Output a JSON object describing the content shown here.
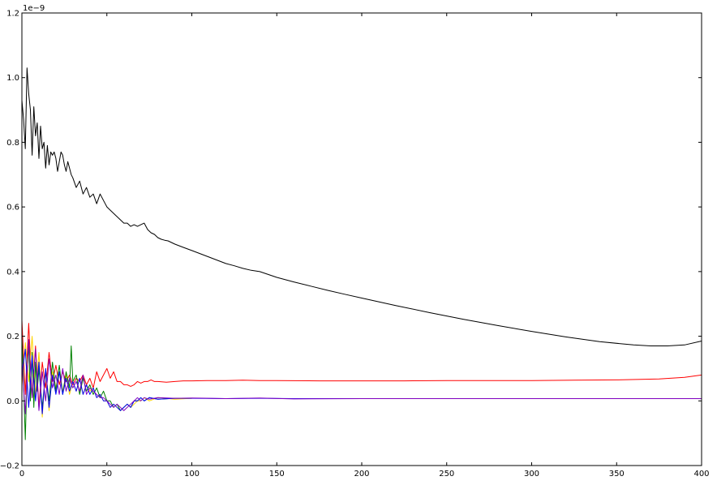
{
  "chart_data": {
    "type": "line",
    "title": "",
    "xlabel": "",
    "ylabel": "",
    "xlim": [
      0,
      400
    ],
    "ylim": [
      -0.2,
      1.2
    ],
    "y_offset_label": "1e−9",
    "grid": false,
    "legend": "none",
    "x_ticks": [
      0,
      50,
      100,
      150,
      200,
      250,
      300,
      350,
      400
    ],
    "y_ticks": [
      -0.2,
      0.0,
      0.2,
      0.4,
      0.6,
      0.8,
      1.0,
      1.2
    ],
    "x_tick_labels": [
      "0",
      "50",
      "100",
      "150",
      "200",
      "250",
      "300",
      "350",
      "400"
    ],
    "y_tick_labels": [
      "−0.2",
      "0.0",
      "0.2",
      "0.4",
      "0.6",
      "0.8",
      "1.0",
      "1.2"
    ],
    "series": [
      {
        "color": "#000000",
        "x": [
          0,
          1,
          2,
          3,
          4,
          5,
          6,
          7,
          8,
          9,
          10,
          11,
          12,
          13,
          14,
          15,
          16,
          17,
          18,
          19,
          20,
          21,
          22,
          23,
          24,
          25,
          26,
          27,
          28,
          29,
          30,
          32,
          34,
          36,
          38,
          40,
          42,
          44,
          46,
          48,
          50,
          52,
          54,
          56,
          58,
          60,
          62,
          64,
          66,
          68,
          70,
          72,
          74,
          76,
          78,
          80,
          82,
          84,
          86,
          88,
          90,
          95,
          100,
          105,
          110,
          115,
          120,
          125,
          130,
          135,
          140,
          150,
          160,
          170,
          180,
          190,
          200,
          220,
          240,
          260,
          280,
          300,
          320,
          340,
          360,
          370,
          380,
          390,
          400
        ],
        "y": [
          0.93,
          0.87,
          0.78,
          1.03,
          0.95,
          0.9,
          0.76,
          0.91,
          0.82,
          0.86,
          0.75,
          0.85,
          0.78,
          0.8,
          0.72,
          0.79,
          0.73,
          0.77,
          0.76,
          0.77,
          0.75,
          0.71,
          0.74,
          0.77,
          0.76,
          0.73,
          0.71,
          0.74,
          0.72,
          0.7,
          0.69,
          0.66,
          0.68,
          0.64,
          0.66,
          0.63,
          0.64,
          0.61,
          0.64,
          0.62,
          0.6,
          0.59,
          0.58,
          0.57,
          0.56,
          0.55,
          0.55,
          0.54,
          0.545,
          0.54,
          0.545,
          0.55,
          0.53,
          0.52,
          0.515,
          0.505,
          0.5,
          0.497,
          0.495,
          0.49,
          0.485,
          0.475,
          0.465,
          0.455,
          0.445,
          0.435,
          0.425,
          0.418,
          0.41,
          0.404,
          0.4,
          0.382,
          0.368,
          0.355,
          0.342,
          0.33,
          0.318,
          0.295,
          0.273,
          0.252,
          0.233,
          0.215,
          0.198,
          0.183,
          0.173,
          0.17,
          0.17,
          0.173,
          0.185
        ]
      },
      {
        "color": "#ff0000",
        "x": [
          0,
          2,
          4,
          6,
          8,
          10,
          12,
          14,
          16,
          18,
          20,
          22,
          24,
          26,
          28,
          30,
          32,
          34,
          36,
          38,
          40,
          42,
          44,
          46,
          48,
          50,
          52,
          54,
          56,
          58,
          60,
          62,
          64,
          66,
          68,
          70,
          72,
          74,
          76,
          78,
          80,
          85,
          90,
          95,
          100,
          110,
          120,
          130,
          140,
          150,
          175,
          200,
          225,
          250,
          275,
          300,
          325,
          350,
          375,
          390,
          400
        ],
        "y": [
          0.25,
          0.02,
          0.24,
          0.01,
          0.17,
          -0.02,
          0.12,
          0.04,
          0.15,
          0.06,
          0.11,
          0.05,
          0.09,
          0.06,
          0.08,
          0.05,
          0.07,
          0.06,
          0.08,
          0.05,
          0.07,
          0.04,
          0.09,
          0.06,
          0.08,
          0.1,
          0.07,
          0.09,
          0.06,
          0.06,
          0.05,
          0.05,
          0.045,
          0.05,
          0.06,
          0.055,
          0.06,
          0.06,
          0.065,
          0.06,
          0.06,
          0.058,
          0.06,
          0.062,
          0.062,
          0.063,
          0.063,
          0.064,
          0.063,
          0.063,
          0.062,
          0.062,
          0.062,
          0.063,
          0.063,
          0.063,
          0.064,
          0.065,
          0.068,
          0.073,
          0.08
        ]
      },
      {
        "color": "#ffd400",
        "x": [
          0,
          2,
          4,
          6,
          8,
          10,
          12,
          14,
          16,
          18,
          20,
          22,
          24,
          26,
          28,
          30,
          32,
          34,
          36,
          38,
          40,
          42,
          44,
          46,
          48,
          50,
          52,
          54,
          56,
          58,
          60,
          62,
          64,
          66,
          68,
          70,
          72,
          75,
          80,
          90,
          100
        ],
        "y": [
          0.05,
          0.18,
          0.06,
          0.2,
          0.02,
          0.15,
          -0.05,
          0.1,
          -0.03,
          0.09,
          0.04,
          0.09,
          0.03,
          0.08,
          0.02,
          0.06,
          0.03,
          0.07,
          0.02,
          0.05,
          0.03,
          0.04,
          0.01,
          0.02,
          0.0,
          0.0,
          -0.02,
          -0.01,
          -0.02,
          -0.03,
          -0.02,
          -0.01,
          -0.02,
          -0.01,
          0.0,
          0.0,
          0.01,
          0.0,
          0.01,
          0.005,
          0.008
        ]
      },
      {
        "color": "#008000",
        "x": [
          0,
          1,
          2,
          3,
          4,
          5,
          6,
          7,
          8,
          9,
          10,
          12,
          14,
          16,
          18,
          20,
          22,
          24,
          26,
          28,
          29,
          30,
          32,
          34,
          36,
          38,
          40,
          42,
          44,
          46,
          48,
          50,
          52,
          54,
          56,
          58,
          60,
          62,
          64,
          66,
          68,
          70,
          72,
          75,
          80,
          90,
          100
        ],
        "y": [
          0.2,
          0.05,
          -0.12,
          0.08,
          0.18,
          0.0,
          0.15,
          -0.02,
          0.12,
          0.03,
          0.1,
          -0.02,
          0.09,
          0.0,
          0.12,
          0.03,
          0.11,
          0.02,
          0.09,
          0.04,
          0.17,
          0.06,
          0.08,
          0.02,
          0.07,
          0.03,
          0.05,
          0.02,
          0.04,
          0.01,
          0.03,
          0.0,
          0.0,
          -0.02,
          -0.01,
          -0.03,
          -0.02,
          -0.01,
          -0.02,
          0.0,
          0.0,
          0.01,
          0.0,
          0.01,
          0.005,
          0.008,
          0.008
        ]
      },
      {
        "color": "#0000ff",
        "x": [
          0,
          2,
          4,
          6,
          8,
          10,
          12,
          14,
          16,
          18,
          20,
          22,
          24,
          26,
          28,
          30,
          32,
          34,
          36,
          38,
          40,
          42,
          44,
          46,
          48,
          50,
          52,
          54,
          56,
          58,
          60,
          62,
          64,
          66,
          68,
          70,
          72,
          75,
          80,
          90,
          100,
          120,
          140,
          160,
          200,
          250,
          300,
          350,
          400
        ],
        "y": [
          0.08,
          0.16,
          -0.02,
          0.14,
          0.0,
          0.12,
          -0.04,
          0.1,
          -0.02,
          0.08,
          0.02,
          0.09,
          0.02,
          0.07,
          0.03,
          0.06,
          0.03,
          0.07,
          0.02,
          0.05,
          0.02,
          0.04,
          0.01,
          0.02,
          0.0,
          0.0,
          -0.02,
          -0.01,
          -0.02,
          -0.03,
          -0.02,
          -0.01,
          -0.02,
          0.0,
          0.0,
          0.01,
          0.0,
          0.01,
          0.005,
          0.008,
          0.008,
          0.007,
          0.008,
          0.007,
          0.007,
          0.007,
          0.007,
          0.007,
          0.007
        ]
      },
      {
        "color": "#7f00bf",
        "x": [
          0,
          2,
          4,
          6,
          8,
          10,
          12,
          14,
          16,
          18,
          20,
          22,
          24,
          26,
          28,
          30,
          32,
          34,
          36,
          38,
          40,
          42,
          44,
          46,
          48,
          50,
          52,
          54,
          56,
          58,
          60,
          62,
          64,
          66,
          68,
          70,
          72,
          75,
          80,
          90,
          100,
          120,
          140,
          160,
          200,
          250,
          300,
          350,
          400
        ],
        "y": [
          0.12,
          -0.04,
          0.19,
          0.01,
          0.16,
          -0.03,
          0.09,
          0.0,
          0.13,
          0.04,
          0.08,
          0.02,
          0.1,
          0.03,
          0.07,
          0.04,
          0.06,
          0.03,
          0.08,
          0.02,
          0.04,
          0.03,
          0.02,
          0.01,
          0.01,
          0.0,
          -0.01,
          -0.02,
          -0.01,
          -0.02,
          -0.03,
          -0.02,
          -0.01,
          0.0,
          0.01,
          0.0,
          0.01,
          0.005,
          0.01,
          0.008,
          0.009,
          0.007,
          0.009,
          0.006,
          0.007,
          0.007,
          0.007,
          0.007,
          0.007
        ]
      }
    ]
  }
}
